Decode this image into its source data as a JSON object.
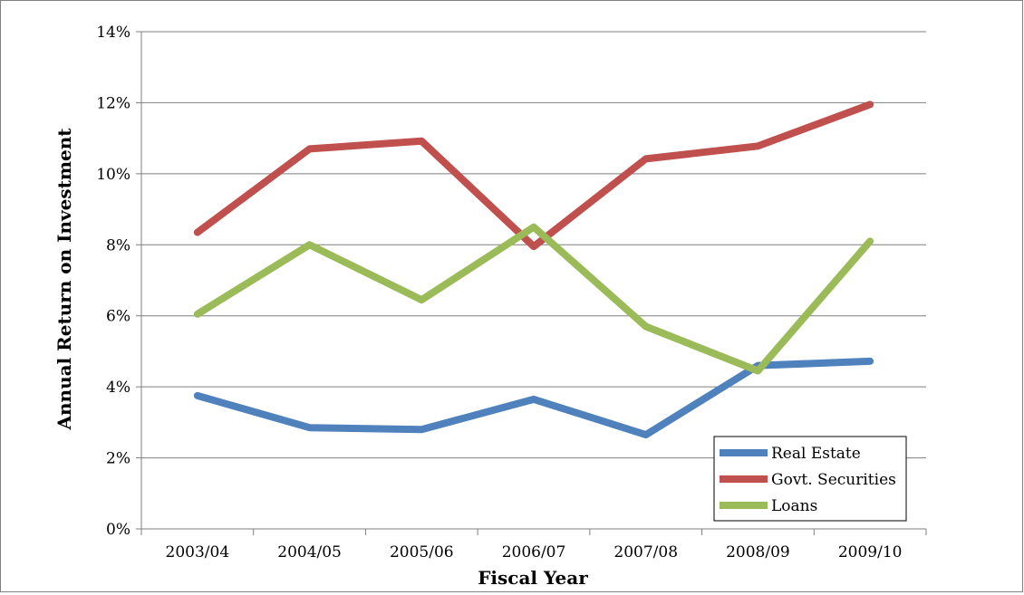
{
  "chart_data": {
    "type": "line",
    "title": "",
    "xlabel": "Fiscal Year",
    "ylabel": "Annual Return on Investment",
    "categories": [
      "2003/04",
      "2004/05",
      "2005/06",
      "2006/07",
      "2007/08",
      "2008/09",
      "2009/10"
    ],
    "ylim": [
      0,
      14
    ],
    "y_ticks": [
      "0%",
      "2%",
      "4%",
      "6%",
      "8%",
      "10%",
      "12%",
      "14%"
    ],
    "grid": true,
    "legend_position": "bottom-right",
    "series": [
      {
        "name": "Real Estate",
        "color": "#4f81bd",
        "values": [
          3.75,
          2.85,
          2.8,
          3.65,
          2.65,
          4.6,
          4.72
        ]
      },
      {
        "name": "Govt. Securities",
        "color": "#c0504d",
        "values": [
          8.35,
          10.7,
          10.92,
          7.95,
          10.42,
          10.78,
          11.95
        ]
      },
      {
        "name": "Loans",
        "color": "#9bbb59",
        "values": [
          6.05,
          8.0,
          6.45,
          8.5,
          5.7,
          4.45,
          8.1
        ]
      }
    ]
  }
}
